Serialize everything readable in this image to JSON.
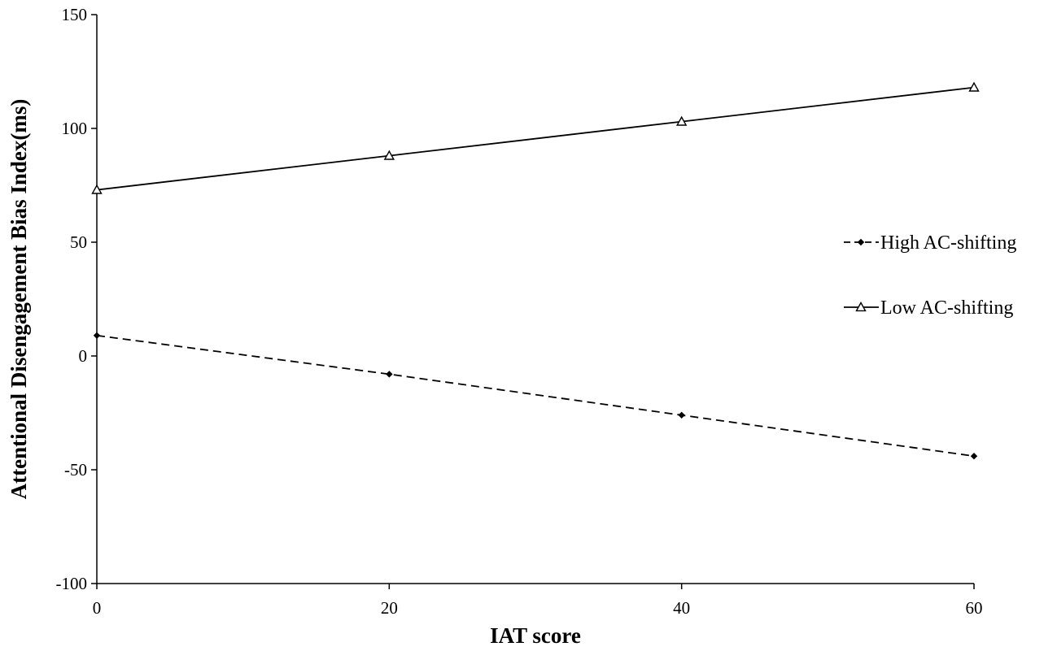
{
  "chart_data": {
    "type": "line",
    "x": [
      0,
      20,
      40,
      60
    ],
    "series": [
      {
        "name": "High AC-shifting",
        "values": [
          9,
          -8,
          -26,
          -44
        ],
        "line_style": "dashed",
        "marker": "filled-diamond",
        "color": "#000000"
      },
      {
        "name": "Low AC-shifting",
        "values": [
          73,
          88,
          103,
          118
        ],
        "line_style": "solid",
        "marker": "open-triangle",
        "color": "#000000"
      }
    ],
    "xlabel": "IAT score",
    "ylabel": "Attentional Disengagement Bias Index(ms)",
    "xlim": [
      0,
      60
    ],
    "ylim": [
      -100,
      150
    ],
    "xticks": [
      0,
      20,
      40,
      60
    ],
    "yticks": [
      -100,
      -50,
      0,
      50,
      100,
      150
    ],
    "grid": false,
    "legend_position": "right"
  }
}
